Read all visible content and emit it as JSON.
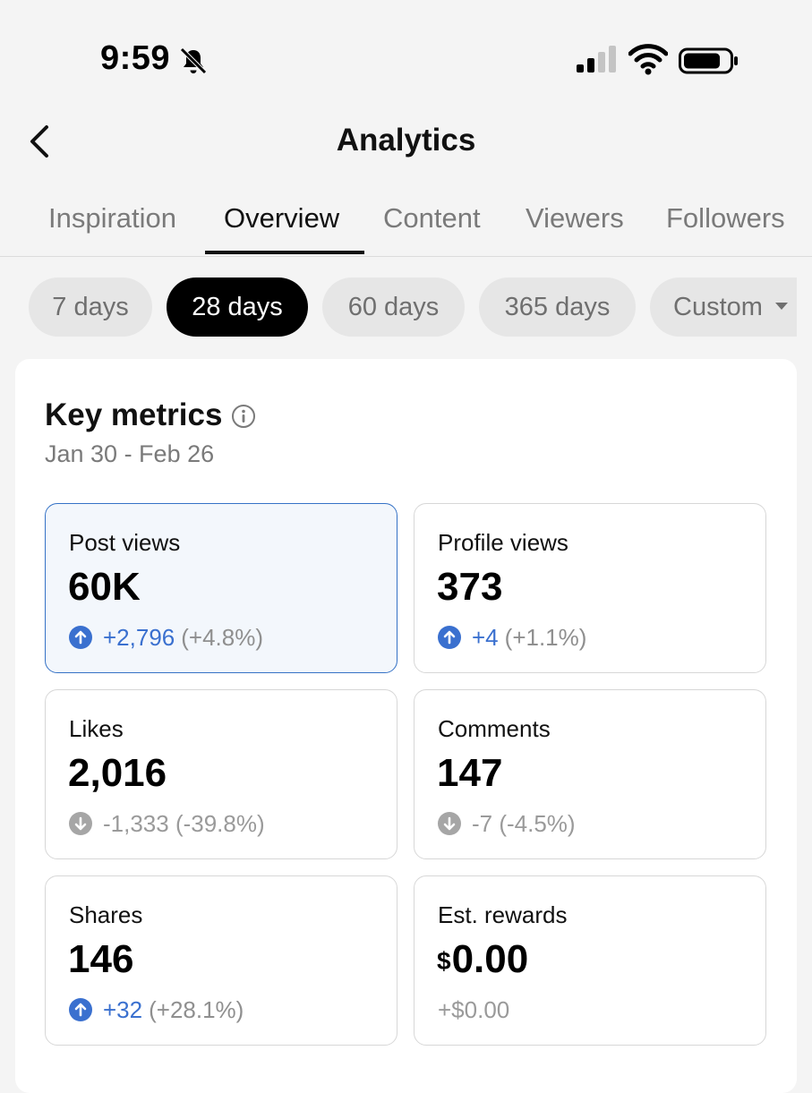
{
  "status_bar": {
    "time": "9:59"
  },
  "header": {
    "title": "Analytics"
  },
  "tabs": [
    {
      "label": "Inspiration"
    },
    {
      "label": "Overview"
    },
    {
      "label": "Content"
    },
    {
      "label": "Viewers"
    },
    {
      "label": "Followers"
    }
  ],
  "active_tab": "Overview",
  "ranges": [
    {
      "label": "7 days"
    },
    {
      "label": "28 days"
    },
    {
      "label": "60 days"
    },
    {
      "label": "365 days"
    },
    {
      "label": "Custom"
    }
  ],
  "active_range": "28 days",
  "key_metrics": {
    "title": "Key metrics",
    "date_range": "Jan 30 - Feb 26",
    "metrics": [
      {
        "label": "Post views",
        "value": "60K",
        "delta": "+2,796",
        "pct": "(+4.8%)",
        "trend": "up"
      },
      {
        "label": "Profile views",
        "value": "373",
        "delta": "+4",
        "pct": "(+1.1%)",
        "trend": "up"
      },
      {
        "label": "Likes",
        "value": "2,016",
        "delta": "-1,333 (-39.8%)",
        "pct": "",
        "trend": "down"
      },
      {
        "label": "Comments",
        "value": "147",
        "delta": "-7 (-4.5%)",
        "pct": "",
        "trend": "down"
      },
      {
        "label": "Shares",
        "value": "146",
        "delta": "+32",
        "pct": "(+28.1%)",
        "trend": "up"
      },
      {
        "label": "Est. rewards",
        "currency": "$",
        "value": "0.00",
        "delta": "+$0.00",
        "pct": "",
        "trend": "none"
      }
    ]
  },
  "colors": {
    "accent": "#3a70cf",
    "selected_card_bg": "#f3f7fc",
    "selected_card_border": "#3572c6"
  }
}
